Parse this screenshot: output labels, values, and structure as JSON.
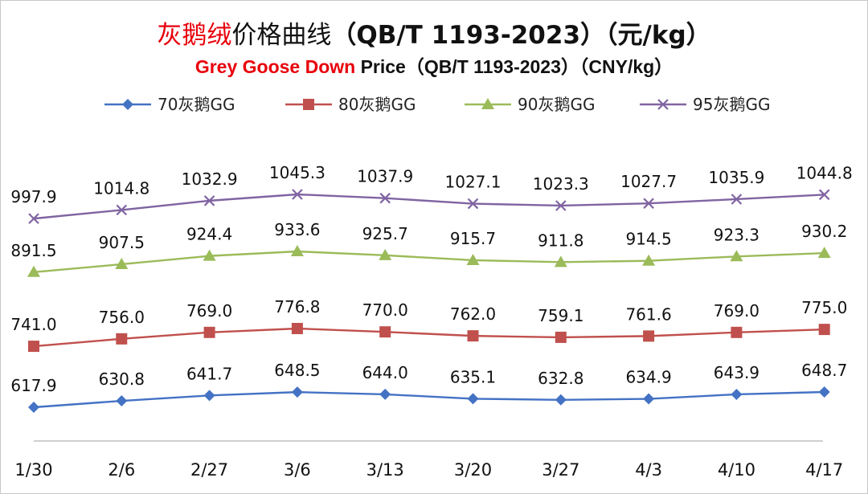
{
  "title_cn": {
    "highlight": "灰鹅绒",
    "main": "价格曲线",
    "standard": "（QB/T 1193-2023）",
    "unit": "（元/kg）"
  },
  "title_en": {
    "highlight": "Grey Goose Down",
    "rest": " Price（QB/T 1193-2023）（CNY/kg）"
  },
  "chart_data": {
    "type": "line",
    "categories": [
      "1/30",
      "2/6",
      "2/27",
      "3/6",
      "3/13",
      "3/20",
      "3/27",
      "4/3",
      "4/10",
      "4/17"
    ],
    "series": [
      {
        "name": "70灰鹅GG",
        "color": "#4472c4",
        "marker": "diamond",
        "values": [
          617.9,
          630.8,
          641.7,
          648.5,
          644.0,
          635.1,
          632.8,
          634.9,
          643.9,
          648.7
        ],
        "labels": [
          "617.9",
          "630.8",
          "641.7",
          "648.5",
          "644.0",
          "635.1",
          "632.8",
          "634.9",
          "643.9",
          "648.7"
        ]
      },
      {
        "name": "80灰鹅GG",
        "color": "#c0504d",
        "marker": "square",
        "values": [
          741.0,
          756.0,
          769.0,
          776.8,
          770.0,
          762.0,
          759.1,
          761.6,
          769.0,
          775.0
        ],
        "labels": [
          "741.0",
          "756.0",
          "769.0",
          "776.8",
          "770.0",
          "762.0",
          "759.1",
          "761.6",
          "769.0",
          "775.0"
        ]
      },
      {
        "name": "90灰鹅GG",
        "color": "#9bbb59",
        "marker": "triangle",
        "values": [
          891.5,
          907.5,
          924.4,
          933.6,
          925.7,
          915.7,
          911.8,
          914.5,
          923.3,
          930.2
        ],
        "labels": [
          "891.5",
          "907.5",
          "924.4",
          "933.6",
          "925.7",
          "915.7",
          "911.8",
          "914.5",
          "923.3",
          "930.2"
        ]
      },
      {
        "name": "95灰鹅GG",
        "color": "#8064a2",
        "marker": "x",
        "values": [
          997.9,
          1014.8,
          1032.9,
          1045.3,
          1037.9,
          1027.1,
          1023.3,
          1027.7,
          1035.9,
          1044.8
        ],
        "labels": [
          "997.9",
          "1014.8",
          "1032.9",
          "1045.3",
          "1037.9",
          "1027.1",
          "1023.3",
          "1027.7",
          "1035.9",
          "1044.8"
        ]
      }
    ],
    "legend_position": "top",
    "grid": false
  }
}
